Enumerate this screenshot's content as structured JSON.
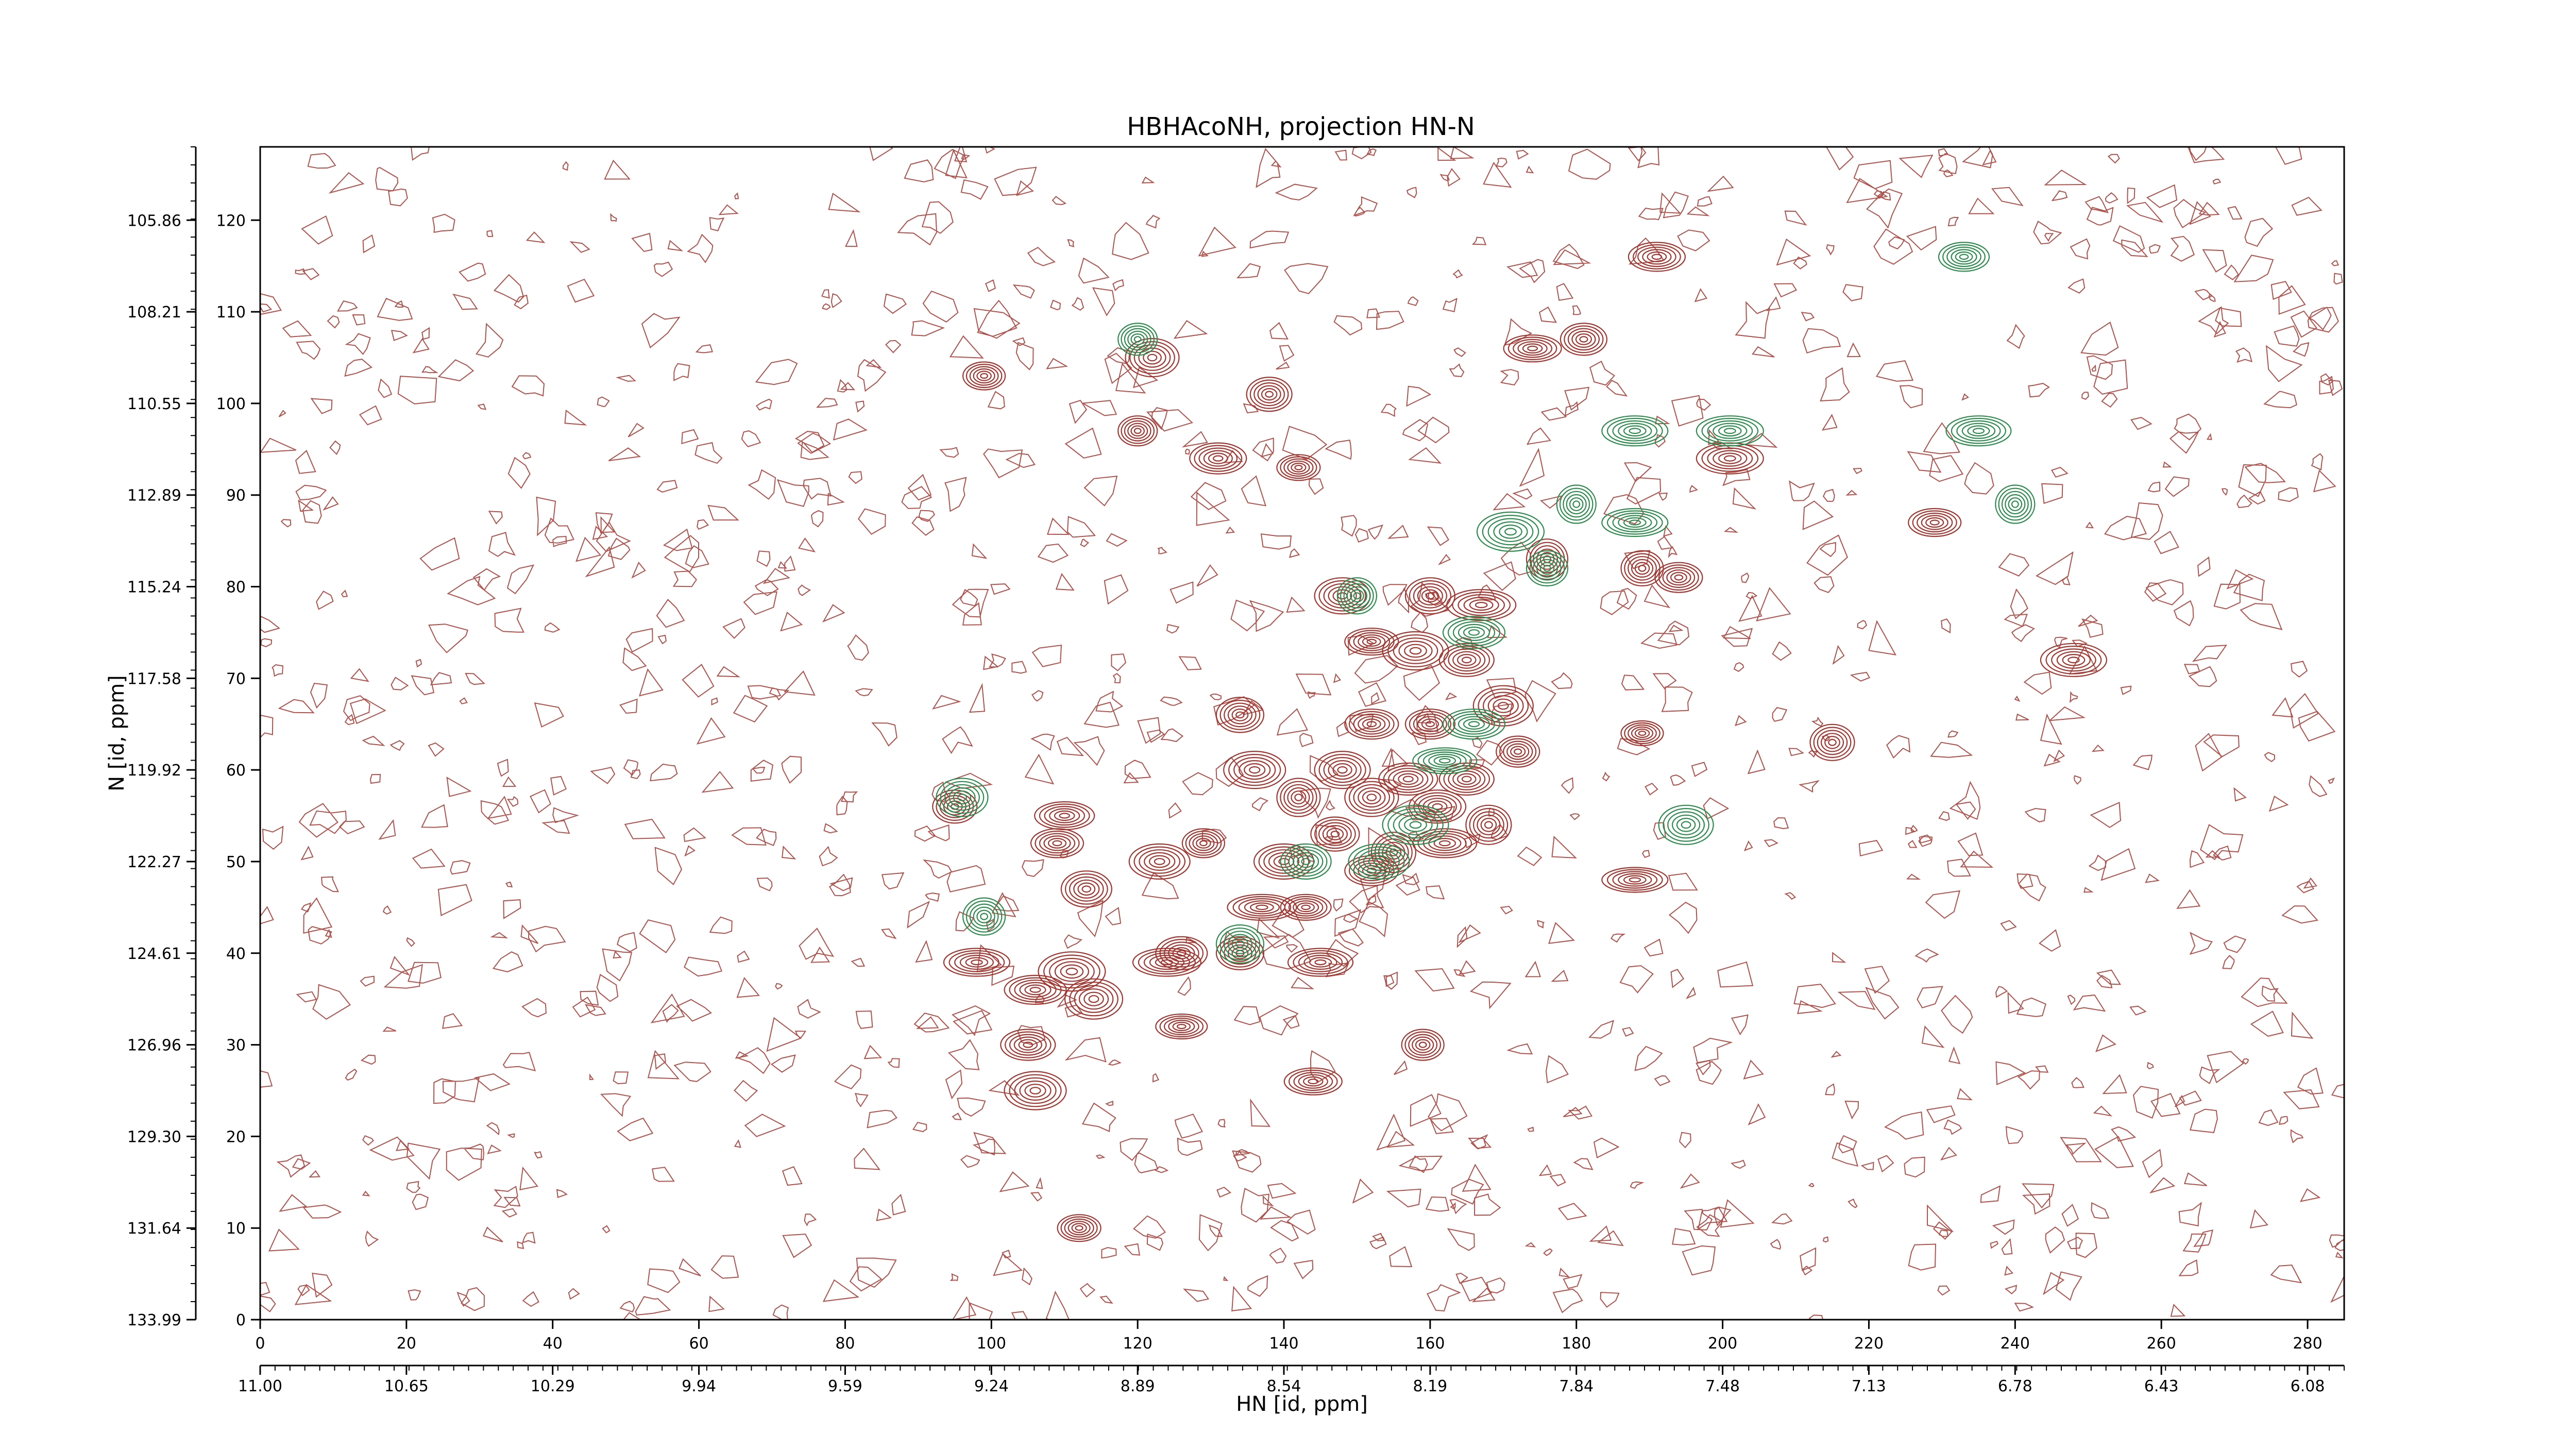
{
  "chart_data": {
    "type": "contour",
    "title": "HBHAcoNH, projection HN-N",
    "xlabel": "HN [id, ppm]",
    "ylabel": "N [id, ppm]",
    "xlim": [
      0,
      285
    ],
    "ylim": [
      0,
      128
    ],
    "x_index_ticks": [
      "0",
      "20",
      "40",
      "60",
      "80",
      "100",
      "120",
      "140",
      "160",
      "180",
      "200",
      "220",
      "240",
      "260",
      "280"
    ],
    "x_ppm_ticks": [
      "11.00",
      "10.65",
      "10.29",
      "9.94",
      "9.59",
      "9.24",
      "8.89",
      "8.54",
      "8.19",
      "7.84",
      "7.48",
      "7.13",
      "6.78",
      "6.43",
      "6.08"
    ],
    "y_index_ticks": [
      "0",
      "10",
      "20",
      "30",
      "40",
      "50",
      "60",
      "70",
      "80",
      "90",
      "100",
      "110",
      "120"
    ],
    "y_ppm_ticks": [
      "133.99",
      "131.64",
      "129.30",
      "126.96",
      "124.61",
      "122.27",
      "119.92",
      "117.58",
      "115.24",
      "112.89",
      "110.55",
      "108.21",
      "105.86"
    ],
    "colors": {
      "positive": "#a0362f",
      "negative": "#2e8b4e"
    },
    "series": [
      {
        "sign": "positive",
        "peaks": [
          [
            191,
            116
          ],
          [
            122,
            105
          ],
          [
            174,
            106
          ],
          [
            181,
            107
          ],
          [
            99,
            103
          ],
          [
            138,
            101
          ],
          [
            120,
            97
          ],
          [
            131,
            94
          ],
          [
            142,
            93
          ],
          [
            201,
            94
          ],
          [
            229,
            87
          ],
          [
            176,
            83
          ],
          [
            189,
            82
          ],
          [
            194,
            81
          ],
          [
            148,
            79
          ],
          [
            160,
            79
          ],
          [
            167,
            78
          ],
          [
            152,
            74
          ],
          [
            158,
            73
          ],
          [
            165,
            72
          ],
          [
            248,
            72
          ],
          [
            134,
            66
          ],
          [
            170,
            67
          ],
          [
            152,
            65
          ],
          [
            160,
            65
          ],
          [
            189,
            64
          ],
          [
            215,
            63
          ],
          [
            172,
            62
          ],
          [
            136,
            60
          ],
          [
            148,
            60
          ],
          [
            157,
            59
          ],
          [
            165,
            59
          ],
          [
            142,
            57
          ],
          [
            152,
            57
          ],
          [
            161,
            56
          ],
          [
            95,
            56
          ],
          [
            168,
            54
          ],
          [
            110,
            55
          ],
          [
            147,
            53
          ],
          [
            109,
            52
          ],
          [
            129,
            52
          ],
          [
            123,
            50
          ],
          [
            140,
            50
          ],
          [
            155,
            51
          ],
          [
            162,
            52
          ],
          [
            188,
            48
          ],
          [
            113,
            47
          ],
          [
            152,
            49
          ],
          [
            143,
            45
          ],
          [
            137,
            45
          ],
          [
            126,
            40
          ],
          [
            134,
            40
          ],
          [
            145,
            39
          ],
          [
            98,
            39
          ],
          [
            111,
            38
          ],
          [
            106,
            36
          ],
          [
            114,
            35
          ],
          [
            126,
            32
          ],
          [
            159,
            30
          ],
          [
            105,
            30
          ],
          [
            144,
            26
          ],
          [
            106,
            25
          ],
          [
            112,
            10
          ],
          [
            124,
            39
          ]
        ]
      },
      {
        "sign": "negative",
        "peaks": [
          [
            233,
            116
          ],
          [
            120,
            107
          ],
          [
            188,
            97
          ],
          [
            201,
            97
          ],
          [
            235,
            97
          ],
          [
            180,
            89
          ],
          [
            188,
            87
          ],
          [
            171,
            86
          ],
          [
            176,
            82
          ],
          [
            150,
            79
          ],
          [
            166,
            65
          ],
          [
            162,
            61
          ],
          [
            158,
            54
          ],
          [
            195,
            54
          ],
          [
            166,
            75
          ],
          [
            99,
            44
          ],
          [
            96,
            57
          ],
          [
            143,
            50
          ],
          [
            153,
            50
          ],
          [
            134,
            41
          ],
          [
            240,
            89
          ]
        ]
      }
    ]
  }
}
